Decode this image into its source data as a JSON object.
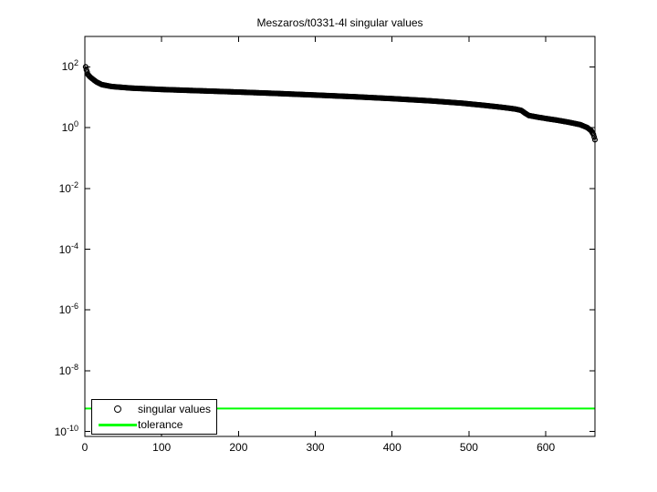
{
  "chart_data": {
    "type": "scatter",
    "title": "Meszaros/t0331-4l singular values",
    "grid": false,
    "legend_position": "bottom-left",
    "x_axis": {
      "ticks": [
        0,
        100,
        200,
        300,
        400,
        500,
        600
      ],
      "range": [
        0,
        664
      ]
    },
    "y_axis": {
      "scale": "log",
      "base": 10,
      "tick_exponents": [
        2,
        0,
        -2,
        -4,
        -6,
        -8,
        -10
      ],
      "range_exponents": [
        -10.16,
        3.0
      ]
    },
    "series": [
      {
        "name": "singular values",
        "type": "scatter",
        "marker": "open-circle",
        "color": "#000000",
        "n_points": 664,
        "points": [
          [
            1,
            100
          ],
          [
            2,
            80
          ],
          [
            4,
            56
          ],
          [
            7,
            46
          ],
          [
            10,
            40
          ],
          [
            15,
            32
          ],
          [
            22,
            26
          ],
          [
            35,
            22.5
          ],
          [
            60,
            20
          ],
          [
            100,
            18
          ],
          [
            150,
            16.3
          ],
          [
            200,
            14.8
          ],
          [
            250,
            13.3
          ],
          [
            300,
            11.8
          ],
          [
            350,
            10.4
          ],
          [
            400,
            9.0
          ],
          [
            450,
            7.6
          ],
          [
            490,
            6.4
          ],
          [
            520,
            5.4
          ],
          [
            545,
            4.6
          ],
          [
            560,
            4.1
          ],
          [
            568,
            3.7
          ],
          [
            573,
            3.0
          ],
          [
            578,
            2.5
          ],
          [
            590,
            2.2
          ],
          [
            600,
            2.0
          ],
          [
            615,
            1.75
          ],
          [
            630,
            1.5
          ],
          [
            645,
            1.25
          ],
          [
            654,
            1.0
          ],
          [
            659,
            0.8
          ],
          [
            662,
            0.6
          ],
          [
            664,
            0.4
          ]
        ]
      },
      {
        "name": "tolerance",
        "type": "hline",
        "color": "#00ff00",
        "value": 5.7e-10
      }
    ]
  }
}
